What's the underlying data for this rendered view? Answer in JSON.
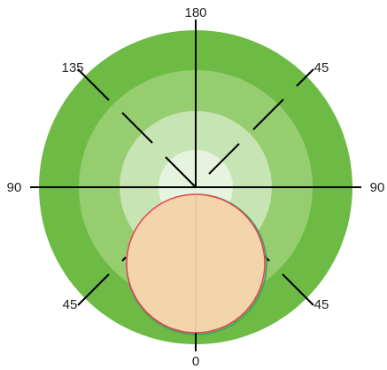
{
  "colors": {
    "background": "#ffffff",
    "ring_outer": "#6dbb45",
    "ring_2": "#95cd6f",
    "ring_3": "#c6e4b4",
    "ring_inner": "#e6f3df",
    "lines": "#000000",
    "circle_fill": "#f3d4ab",
    "circle_stroke_red": "#e8414f",
    "circle_stroke_green": "#3e9d6b"
  },
  "angle_labels": {
    "top": "180",
    "left": "90",
    "right": "90",
    "bottom": "0",
    "upper_left": "135",
    "upper_right": "45",
    "lower_left": "45",
    "lower_right": "45"
  }
}
